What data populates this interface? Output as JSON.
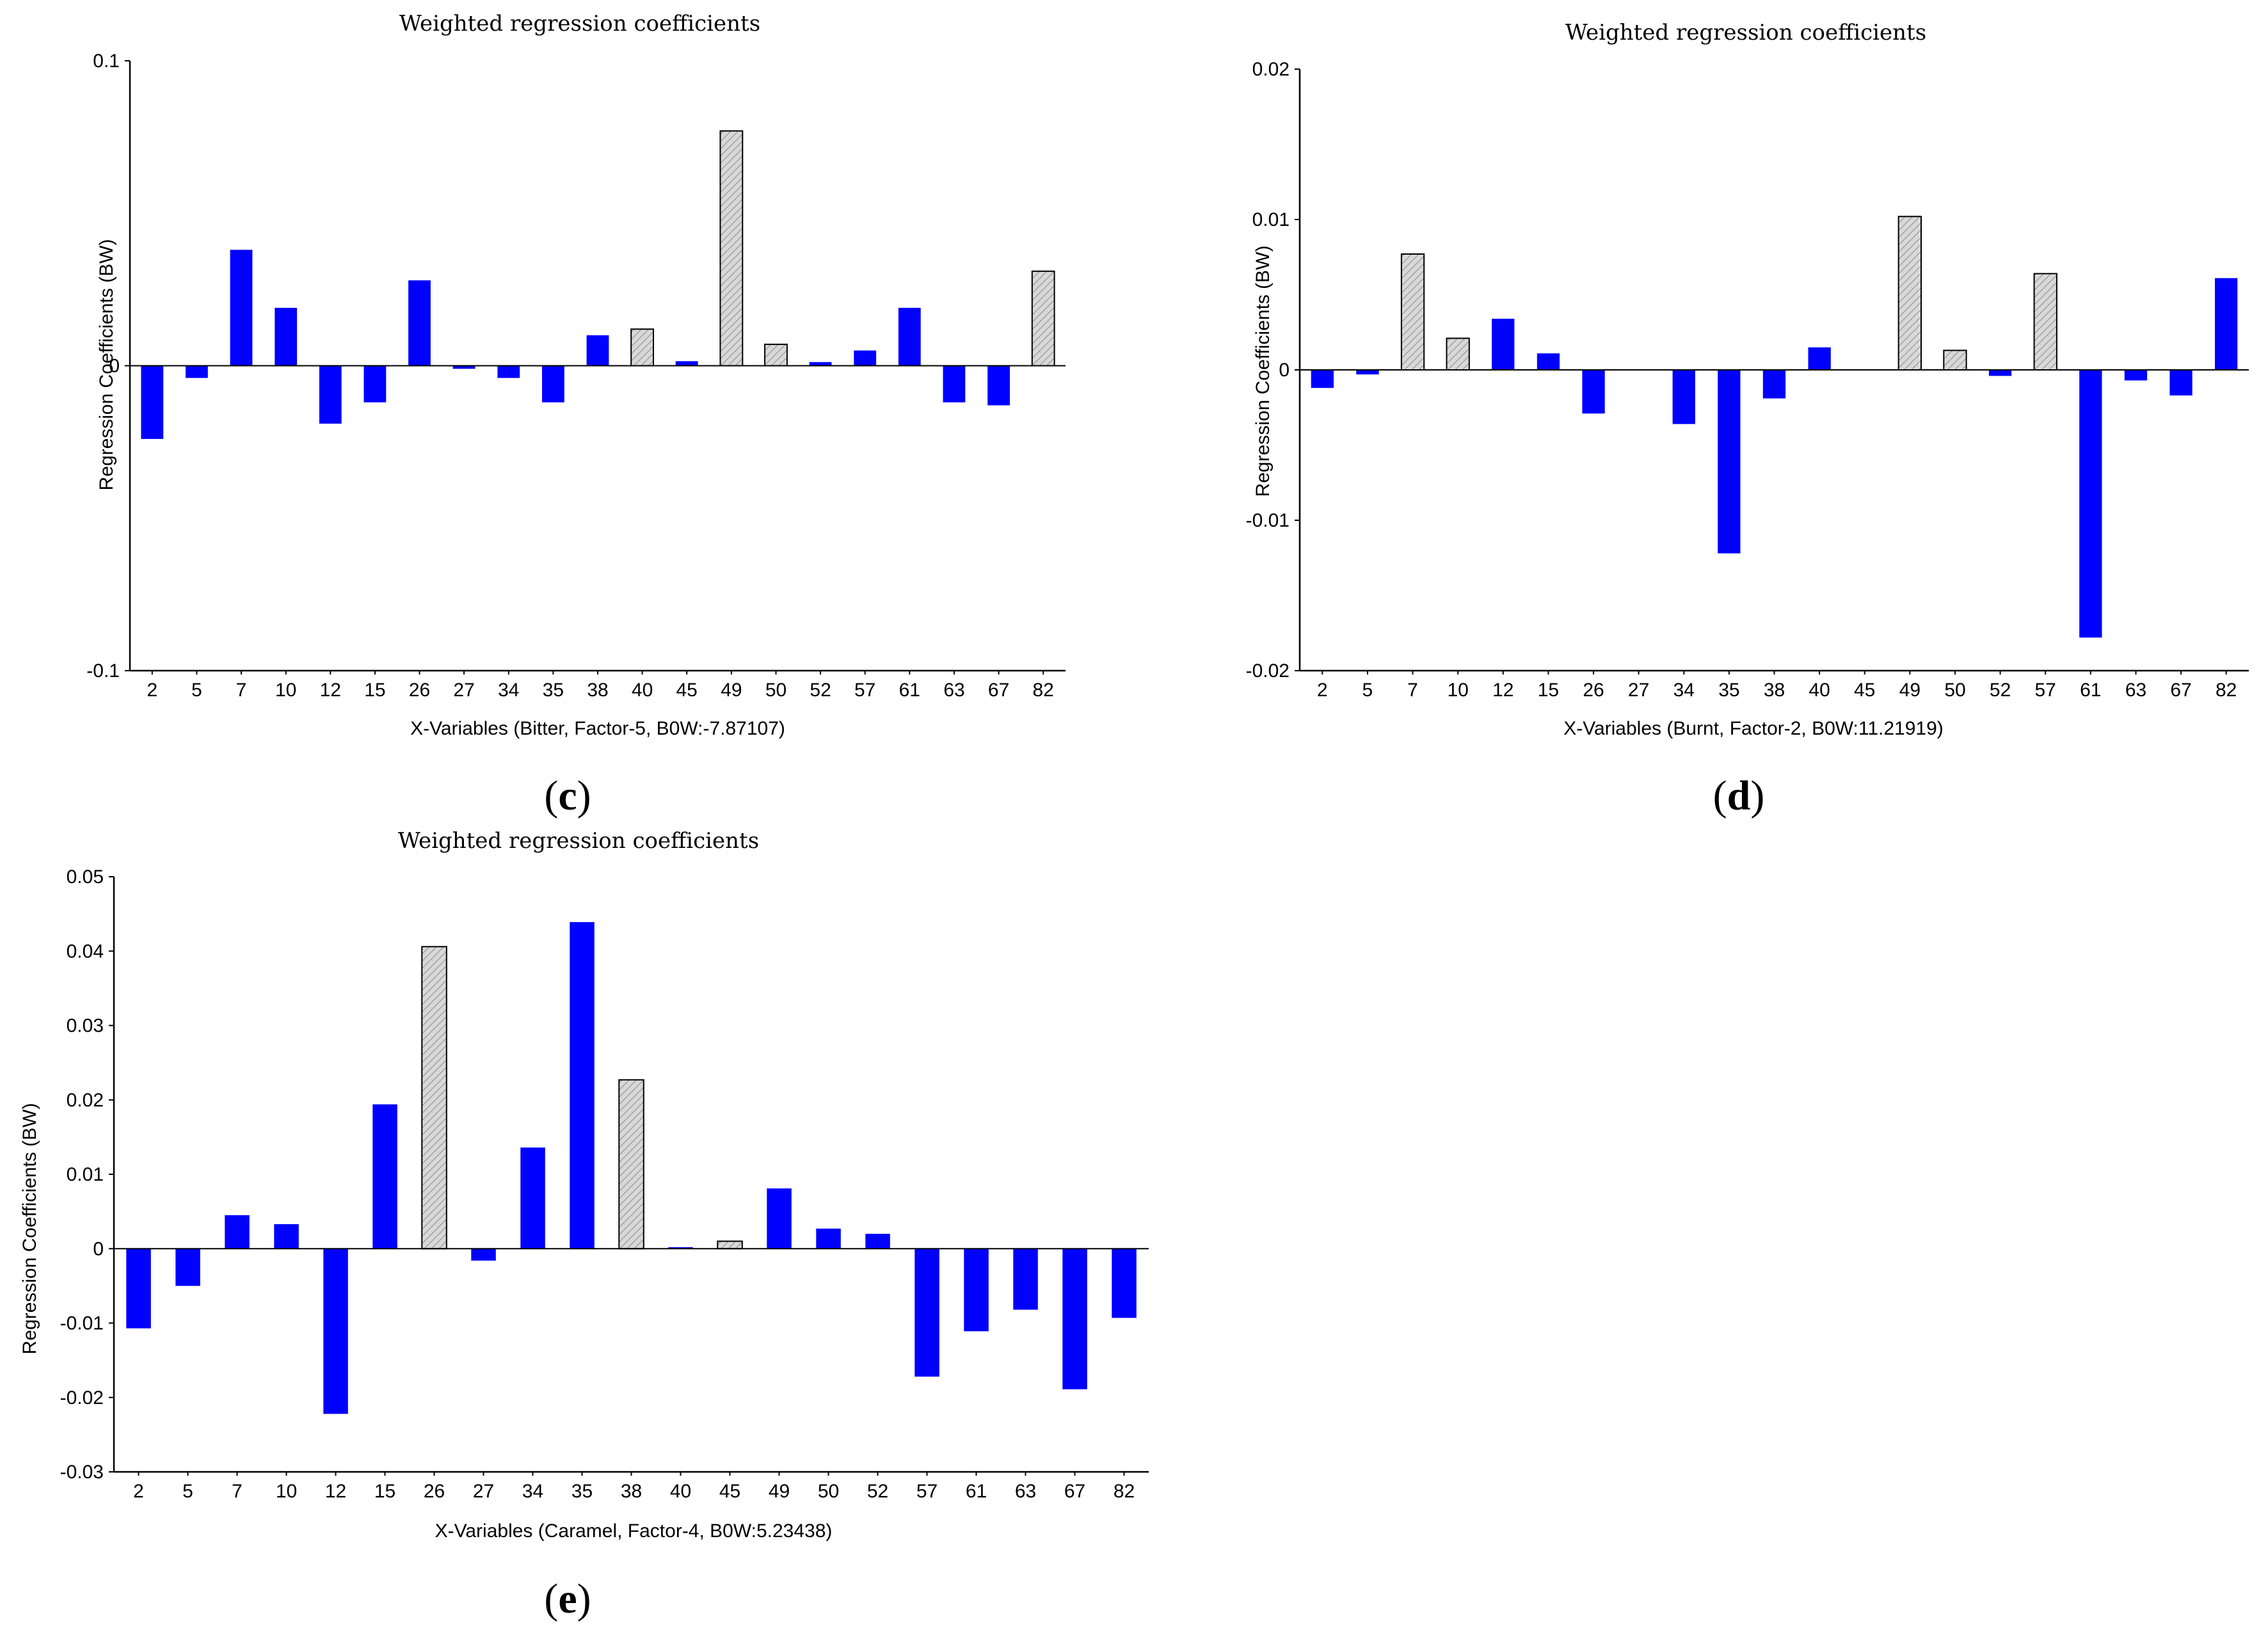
{
  "colors": {
    "highlight": "#0000ff",
    "other": "#d8d8d8",
    "axis": "#000000"
  },
  "chart_data": [
    {
      "type": "bar",
      "panel": "c",
      "title": "Weighted regression coefficients",
      "xlabel": "X-Variables (Bitter, Factor-5, B0W:-7.87107)",
      "ylabel": "Regression Coefficients (BW)",
      "ylim": [
        -0.1,
        0.1
      ],
      "yticks": [
        -0.1,
        0,
        0.1
      ],
      "ytick_labels": [
        "-0.1",
        "0",
        "0.1"
      ],
      "categories": [
        "2",
        "5",
        "7",
        "10",
        "12",
        "15",
        "26",
        "27",
        "34",
        "35",
        "38",
        "40",
        "45",
        "49",
        "50",
        "52",
        "57",
        "61",
        "63",
        "67",
        "82"
      ],
      "values": [
        -0.024,
        -0.004,
        0.038,
        0.019,
        -0.019,
        -0.012,
        0.028,
        -0.001,
        -0.004,
        -0.012,
        0.01,
        0.012,
        0.0015,
        0.077,
        0.007,
        0.0012,
        0.005,
        0.019,
        -0.012,
        -0.013,
        0.031
      ],
      "styles": [
        "blue",
        "blue",
        "blue",
        "blue",
        "blue",
        "blue",
        "blue",
        "blue",
        "blue",
        "blue",
        "blue",
        "gray",
        "blue",
        "gray",
        "gray",
        "blue",
        "blue",
        "blue",
        "blue",
        "blue",
        "gray"
      ]
    },
    {
      "type": "bar",
      "panel": "d",
      "title": "Weighted regression coefficients",
      "xlabel": "X-Variables (Burnt, Factor-2, B0W:11.21919)",
      "ylabel": "Regression Coefficients (BW)",
      "ylim": [
        -0.02,
        0.02
      ],
      "yticks": [
        -0.02,
        -0.01,
        0,
        0.01,
        0.02
      ],
      "ytick_labels": [
        "-0.02",
        "-0.01",
        "0",
        "0.01",
        "0.02"
      ],
      "categories": [
        "2",
        "5",
        "7",
        "10",
        "12",
        "15",
        "26",
        "27",
        "34",
        "35",
        "38",
        "40",
        "45",
        "49",
        "50",
        "52",
        "57",
        "61",
        "63",
        "67",
        "82"
      ],
      "values": [
        -0.0012,
        -0.0003,
        0.0077,
        0.0021,
        0.0034,
        0.0011,
        -0.0029,
        0.0,
        -0.0036,
        -0.0122,
        -0.0019,
        0.0015,
        0.0,
        0.0102,
        0.0013,
        -0.0004,
        0.0064,
        -0.0178,
        -0.0007,
        -0.0017,
        0.0061
      ],
      "styles": [
        "blue",
        "blue",
        "gray",
        "gray",
        "blue",
        "blue",
        "blue",
        "blue",
        "blue",
        "blue",
        "blue",
        "blue",
        "blue",
        "gray",
        "gray",
        "blue",
        "gray",
        "blue",
        "blue",
        "blue",
        "blue"
      ]
    },
    {
      "type": "bar",
      "panel": "e",
      "title": "Weighted regression coefficients",
      "xlabel": "X-Variables (Caramel, Factor-4, B0W:5.23438)",
      "ylabel": "Regression Coefficients (BW)",
      "ylim": [
        -0.03,
        0.05
      ],
      "yticks": [
        -0.03,
        -0.02,
        -0.01,
        0,
        0.01,
        0.02,
        0.03,
        0.04,
        0.05
      ],
      "ytick_labels": [
        "-0.03",
        "-0.02",
        "-0.01",
        "0",
        "0.01",
        "0.02",
        "0.03",
        "0.04",
        "0.05"
      ],
      "categories": [
        "2",
        "5",
        "7",
        "10",
        "12",
        "15",
        "26",
        "27",
        "34",
        "35",
        "38",
        "40",
        "45",
        "49",
        "50",
        "52",
        "57",
        "61",
        "63",
        "67",
        "82"
      ],
      "values": [
        -0.0107,
        -0.005,
        0.0045,
        0.0033,
        -0.0222,
        0.0194,
        0.0406,
        -0.0016,
        0.0136,
        0.0439,
        0.0227,
        0.0002,
        0.001,
        0.0081,
        0.0027,
        0.002,
        -0.0172,
        -0.0111,
        -0.0082,
        -0.0189,
        -0.0093
      ],
      "styles": [
        "blue",
        "blue",
        "blue",
        "blue",
        "blue",
        "blue",
        "gray",
        "blue",
        "blue",
        "blue",
        "gray",
        "blue",
        "gray",
        "blue",
        "blue",
        "blue",
        "blue",
        "blue",
        "blue",
        "blue",
        "blue"
      ]
    }
  ],
  "panel_labels": [
    {
      "open": "(",
      "letter": "c",
      "close": ")"
    },
    {
      "open": "(",
      "letter": "d",
      "close": ")"
    },
    {
      "open": "(",
      "letter": "e",
      "close": ")"
    }
  ]
}
